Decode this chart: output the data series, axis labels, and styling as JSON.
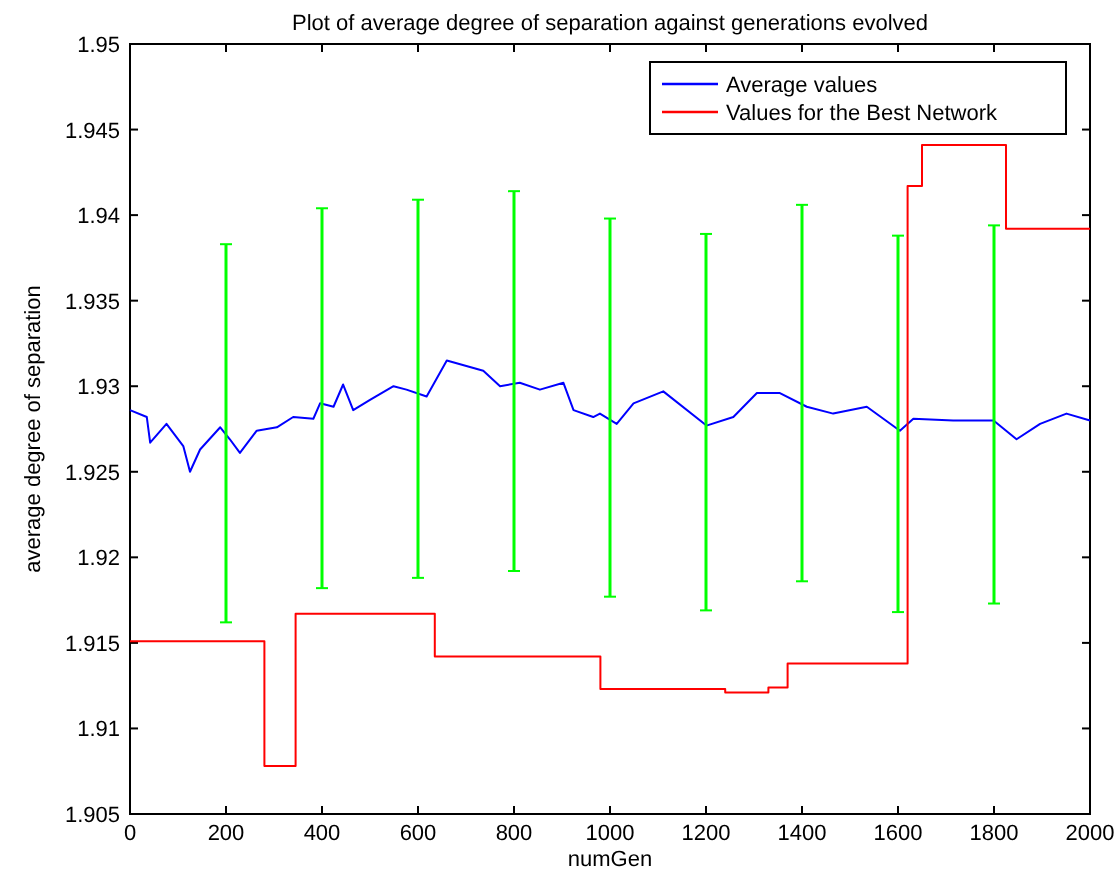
{
  "chart_data": {
    "type": "line",
    "title": "Plot of average degree of separation against generations evolved",
    "xlabel": "numGen",
    "ylabel": "average degree of separation",
    "xlim": [
      0,
      2000
    ],
    "ylim": [
      1.905,
      1.95
    ],
    "xticks": [
      0,
      200,
      400,
      600,
      800,
      1000,
      1200,
      1400,
      1600,
      1800,
      2000
    ],
    "yticks": [
      1.905,
      1.91,
      1.915,
      1.92,
      1.925,
      1.93,
      1.935,
      1.94,
      1.945,
      1.95
    ],
    "grid": false,
    "legend": "top right",
    "series": [
      {
        "name": "Average values",
        "color": "#0000ff",
        "x": [
          0,
          35,
          42,
          76,
          111,
          125,
          146,
          188,
          208,
          229,
          264,
          306,
          340,
          382,
          396,
          424,
          444,
          465,
          500,
          549,
          576,
          618,
          660,
          736,
          771,
          812,
          854,
          903,
          924,
          965,
          979,
          1014,
          1049,
          1111,
          1201,
          1257,
          1306,
          1354,
          1410,
          1465,
          1535,
          1604,
          1632,
          1715,
          1799,
          1847,
          1896,
          1951,
          2000
        ],
        "values": [
          1.9286,
          1.9282,
          1.9267,
          1.9278,
          1.9265,
          1.925,
          1.9263,
          1.9276,
          1.9269,
          1.9261,
          1.9274,
          1.9276,
          1.9282,
          1.9281,
          1.929,
          1.9288,
          1.9301,
          1.9286,
          1.9292,
          1.93,
          1.9298,
          1.9294,
          1.9315,
          1.9309,
          1.93,
          1.9302,
          1.9298,
          1.9302,
          1.9286,
          1.9282,
          1.9284,
          1.9278,
          1.929,
          1.9297,
          1.9277,
          1.9282,
          1.9296,
          1.9296,
          1.9288,
          1.9284,
          1.9288,
          1.9274,
          1.9281,
          1.928,
          1.928,
          1.9269,
          1.9278,
          1.9284,
          1.928
        ]
      },
      {
        "name": "Values for the Best Network",
        "type": "step",
        "color": "#ff0000",
        "x": [
          0,
          280,
          345,
          635,
          980,
          1240,
          1330,
          1370,
          1620,
          1650,
          1825,
          2000
        ],
        "values": [
          1.9151,
          1.9078,
          1.9167,
          1.9142,
          1.9123,
          1.9121,
          1.9124,
          1.9138,
          1.9417,
          1.9441,
          1.9392,
          1.9392
        ]
      },
      {
        "type": "bar",
        "color": "#00ff00",
        "x": [
          200,
          400,
          600,
          800,
          1000,
          1200,
          1400,
          1600,
          1800
        ],
        "base": [
          1.9162,
          1.9182,
          1.9188,
          1.9192,
          1.9177,
          1.9169,
          1.9186,
          1.9168,
          1.9173
        ],
        "values": [
          0.0221,
          0.0222,
          0.0221,
          0.0222,
          0.0221,
          0.022,
          0.022,
          0.022,
          0.0221
        ]
      }
    ]
  }
}
